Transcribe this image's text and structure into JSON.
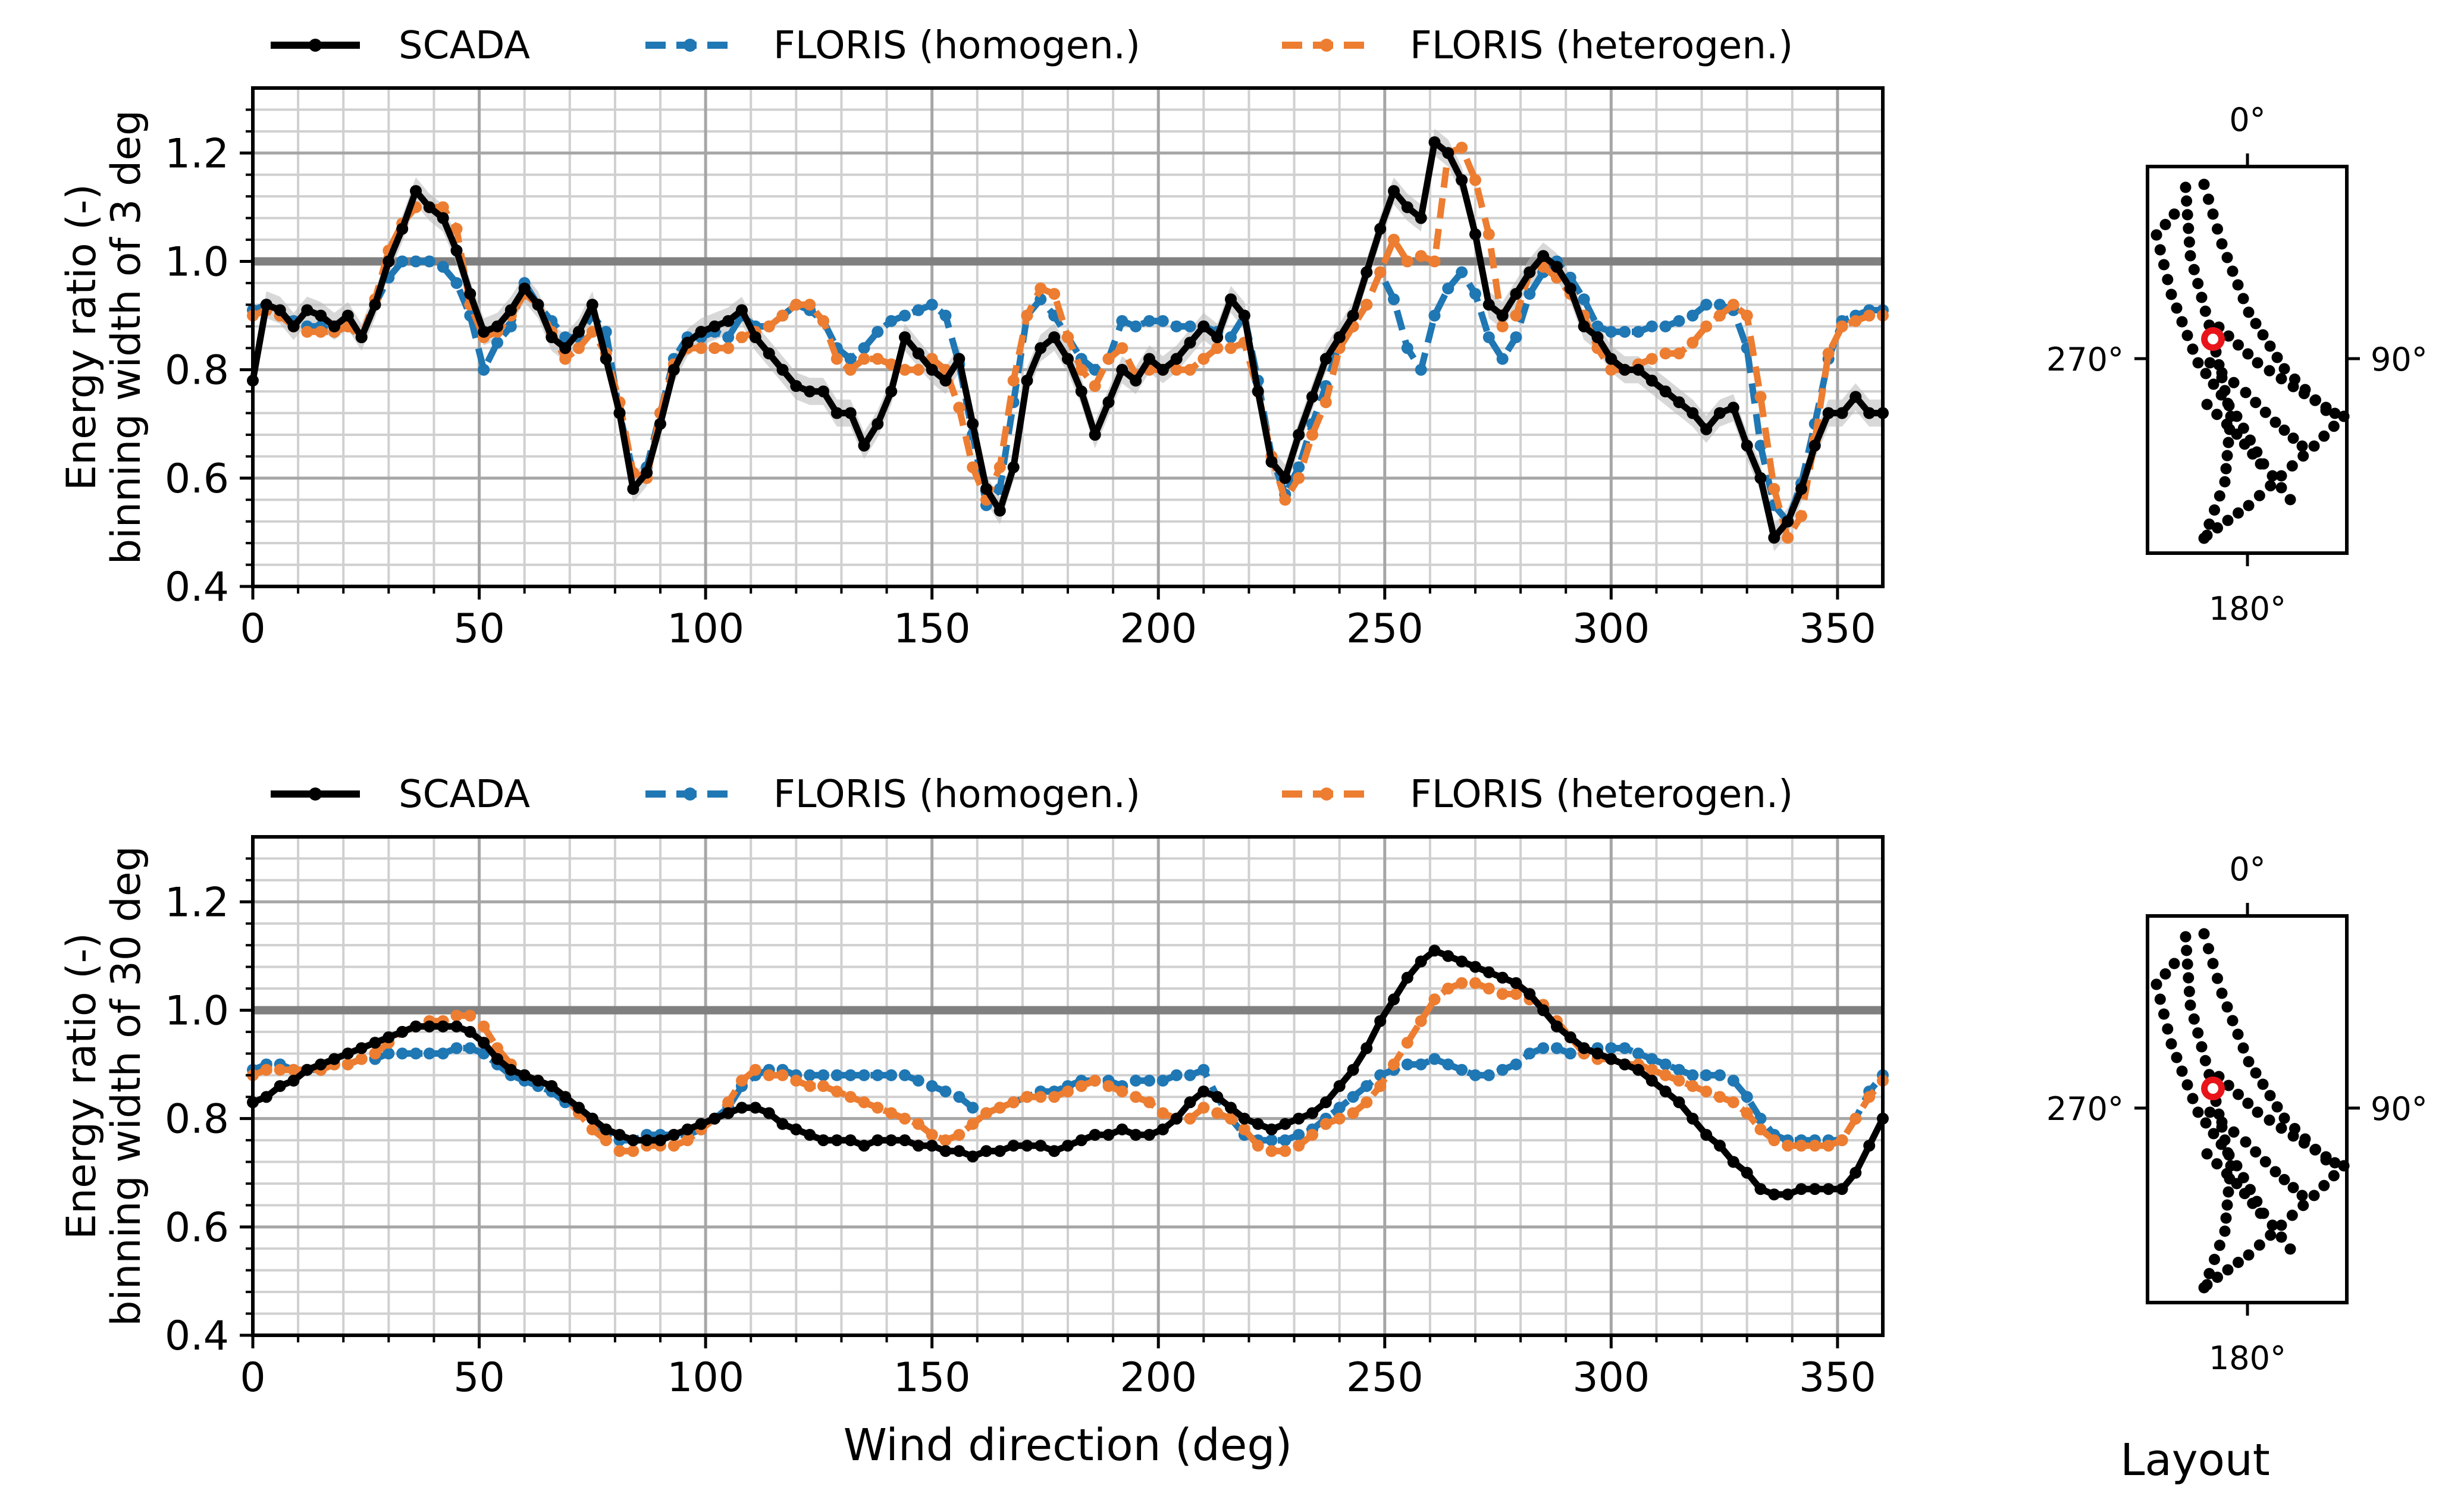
{
  "chart_data": [
    {
      "type": "line",
      "panel": "top",
      "ylabel": [
        "Energy ratio (-)",
        "binning width of 3 deg"
      ],
      "xlabel": "",
      "xlim": [
        0,
        360
      ],
      "ylim": [
        0.4,
        1.32
      ],
      "xticks": [
        "0",
        "50",
        "100",
        "150",
        "200",
        "250",
        "300",
        "350"
      ],
      "yticks": [
        "0.4",
        "0.6",
        "0.8",
        "1.0",
        "1.2"
      ],
      "reference_line": 1.0,
      "grid": true,
      "legend": {
        "placement": "above",
        "entries": [
          "SCADA",
          "FLORIS (homogen.)",
          "FLORIS (heterogen.)"
        ]
      },
      "x": [
        0,
        3,
        6,
        9,
        12,
        15,
        18,
        21,
        24,
        27,
        30,
        33,
        36,
        39,
        42,
        45,
        48,
        51,
        54,
        57,
        60,
        63,
        66,
        69,
        72,
        75,
        78,
        81,
        84,
        87,
        90,
        93,
        96,
        99,
        102,
        105,
        108,
        111,
        114,
        117,
        120,
        123,
        126,
        129,
        132,
        135,
        138,
        141,
        144,
        147,
        150,
        153,
        156,
        159,
        162,
        165,
        168,
        171,
        174,
        177,
        180,
        183,
        186,
        189,
        192,
        195,
        198,
        201,
        204,
        207,
        210,
        213,
        216,
        219,
        222,
        225,
        228,
        231,
        234,
        237,
        240,
        243,
        246,
        249,
        252,
        255,
        258,
        261,
        264,
        267,
        270,
        273,
        276,
        279,
        282,
        285,
        288,
        291,
        294,
        297,
        300,
        303,
        306,
        309,
        312,
        315,
        318,
        321,
        324,
        327,
        330,
        333,
        336,
        339,
        342,
        345,
        348,
        351,
        354,
        357,
        360
      ],
      "series": [
        {
          "name": "SCADA",
          "color": "#000000",
          "style": "solid",
          "values": [
            0.78,
            0.92,
            0.91,
            0.88,
            0.91,
            0.9,
            0.88,
            0.9,
            0.86,
            0.92,
            1.0,
            1.06,
            1.13,
            1.1,
            1.08,
            1.02,
            0.94,
            0.87,
            0.88,
            0.91,
            0.95,
            0.92,
            0.86,
            0.84,
            0.87,
            0.92,
            0.82,
            0.72,
            0.58,
            0.61,
            0.7,
            0.8,
            0.85,
            0.87,
            0.88,
            0.89,
            0.91,
            0.86,
            0.83,
            0.8,
            0.77,
            0.76,
            0.76,
            0.72,
            0.72,
            0.66,
            0.7,
            0.76,
            0.86,
            0.83,
            0.8,
            0.78,
            0.82,
            0.7,
            0.58,
            0.54,
            0.62,
            0.78,
            0.84,
            0.86,
            0.82,
            0.76,
            0.68,
            0.74,
            0.8,
            0.78,
            0.82,
            0.8,
            0.82,
            0.85,
            0.88,
            0.86,
            0.93,
            0.9,
            0.76,
            0.63,
            0.6,
            0.68,
            0.75,
            0.82,
            0.86,
            0.9,
            0.98,
            1.06,
            1.13,
            1.1,
            1.08,
            1.22,
            1.2,
            1.15,
            1.05,
            0.92,
            0.9,
            0.94,
            0.98,
            1.01,
            0.99,
            0.95,
            0.88,
            0.86,
            0.82,
            0.8,
            0.8,
            0.78,
            0.76,
            0.74,
            0.72,
            0.69,
            0.72,
            0.73,
            0.66,
            0.6,
            0.49,
            0.52,
            0.58,
            0.66,
            0.72,
            0.72,
            0.75,
            0.72,
            0.72
          ]
        },
        {
          "name": "FLORIS (homogen.)",
          "color": "#1f77b4",
          "style": "dashed",
          "values": [
            0.91,
            0.92,
            0.9,
            0.89,
            0.88,
            0.88,
            0.87,
            0.88,
            0.86,
            0.92,
            0.97,
            1.0,
            1.0,
            1.0,
            0.99,
            0.96,
            0.9,
            0.8,
            0.85,
            0.88,
            0.96,
            0.92,
            0.89,
            0.86,
            0.86,
            0.9,
            0.87,
            0.72,
            0.61,
            0.62,
            0.72,
            0.82,
            0.86,
            0.86,
            0.87,
            0.86,
            0.9,
            0.88,
            0.88,
            0.9,
            0.92,
            0.91,
            0.89,
            0.84,
            0.82,
            0.84,
            0.87,
            0.89,
            0.9,
            0.91,
            0.92,
            0.9,
            0.81,
            0.68,
            0.55,
            0.58,
            0.74,
            0.9,
            0.93,
            0.9,
            0.86,
            0.82,
            0.8,
            0.82,
            0.89,
            0.88,
            0.89,
            0.89,
            0.88,
            0.88,
            0.88,
            0.87,
            0.86,
            0.9,
            0.78,
            0.64,
            0.57,
            0.62,
            0.7,
            0.77,
            0.85,
            0.88,
            0.92,
            0.98,
            0.93,
            0.84,
            0.8,
            0.9,
            0.95,
            0.98,
            0.94,
            0.86,
            0.82,
            0.86,
            0.94,
            0.98,
            1.0,
            0.97,
            0.93,
            0.88,
            0.87,
            0.87,
            0.87,
            0.88,
            0.88,
            0.89,
            0.9,
            0.92,
            0.92,
            0.91,
            0.84,
            0.66,
            0.55,
            0.52,
            0.59,
            0.7,
            0.82,
            0.89,
            0.9,
            0.91,
            0.91
          ]
        },
        {
          "name": "FLORIS (heterogen.)",
          "color": "#ed7d31",
          "style": "dashed",
          "values": [
            0.9,
            0.91,
            0.9,
            0.88,
            0.87,
            0.87,
            0.87,
            0.88,
            0.86,
            0.93,
            1.02,
            1.07,
            1.1,
            1.1,
            1.1,
            1.06,
            0.92,
            0.86,
            0.87,
            0.9,
            0.94,
            0.92,
            0.87,
            0.82,
            0.84,
            0.87,
            0.83,
            0.74,
            0.61,
            0.6,
            0.72,
            0.81,
            0.84,
            0.84,
            0.84,
            0.84,
            0.86,
            0.87,
            0.88,
            0.9,
            0.92,
            0.92,
            0.89,
            0.82,
            0.8,
            0.82,
            0.82,
            0.81,
            0.8,
            0.8,
            0.82,
            0.8,
            0.73,
            0.62,
            0.56,
            0.62,
            0.78,
            0.9,
            0.95,
            0.94,
            0.86,
            0.8,
            0.77,
            0.82,
            0.84,
            0.79,
            0.8,
            0.8,
            0.8,
            0.8,
            0.82,
            0.84,
            0.84,
            0.85,
            0.76,
            0.64,
            0.56,
            0.6,
            0.68,
            0.74,
            0.84,
            0.88,
            0.92,
            0.98,
            1.04,
            1.0,
            1.01,
            1.0,
            1.2,
            1.21,
            1.15,
            1.05,
            0.88,
            0.9,
            0.98,
            0.99,
            0.97,
            0.94,
            0.9,
            0.84,
            0.8,
            0.8,
            0.81,
            0.82,
            0.83,
            0.83,
            0.85,
            0.88,
            0.9,
            0.92,
            0.9,
            0.75,
            0.58,
            0.49,
            0.53,
            0.67,
            0.83,
            0.88,
            0.89,
            0.9,
            0.9
          ]
        }
      ]
    },
    {
      "type": "line",
      "panel": "bottom",
      "ylabel": [
        "Energy ratio (-)",
        "binning width of 30 deg"
      ],
      "xlabel": "Wind direction (deg)",
      "xlim": [
        0,
        360
      ],
      "ylim": [
        0.4,
        1.32
      ],
      "xticks": [
        "0",
        "50",
        "100",
        "150",
        "200",
        "250",
        "300",
        "350"
      ],
      "yticks": [
        "0.4",
        "0.6",
        "0.8",
        "1.0",
        "1.2"
      ],
      "reference_line": 1.0,
      "grid": true,
      "legend": {
        "placement": "above",
        "entries": [
          "SCADA",
          "FLORIS (homogen.)",
          "FLORIS (heterogen.)"
        ]
      },
      "x": [
        0,
        3,
        6,
        9,
        12,
        15,
        18,
        21,
        24,
        27,
        30,
        33,
        36,
        39,
        42,
        45,
        48,
        51,
        54,
        57,
        60,
        63,
        66,
        69,
        72,
        75,
        78,
        81,
        84,
        87,
        90,
        93,
        96,
        99,
        102,
        105,
        108,
        111,
        114,
        117,
        120,
        123,
        126,
        129,
        132,
        135,
        138,
        141,
        144,
        147,
        150,
        153,
        156,
        159,
        162,
        165,
        168,
        171,
        174,
        177,
        180,
        183,
        186,
        189,
        192,
        195,
        198,
        201,
        204,
        207,
        210,
        213,
        216,
        219,
        222,
        225,
        228,
        231,
        234,
        237,
        240,
        243,
        246,
        249,
        252,
        255,
        258,
        261,
        264,
        267,
        270,
        273,
        276,
        279,
        282,
        285,
        288,
        291,
        294,
        297,
        300,
        303,
        306,
        309,
        312,
        315,
        318,
        321,
        324,
        327,
        330,
        333,
        336,
        339,
        342,
        345,
        348,
        351,
        354,
        357,
        360
      ],
      "series": [
        {
          "name": "SCADA",
          "color": "#000000",
          "style": "solid",
          "values": [
            0.83,
            0.84,
            0.86,
            0.87,
            0.89,
            0.9,
            0.91,
            0.92,
            0.93,
            0.94,
            0.95,
            0.96,
            0.97,
            0.97,
            0.97,
            0.97,
            0.96,
            0.94,
            0.91,
            0.89,
            0.88,
            0.87,
            0.86,
            0.84,
            0.82,
            0.8,
            0.78,
            0.77,
            0.76,
            0.76,
            0.76,
            0.77,
            0.78,
            0.79,
            0.8,
            0.81,
            0.82,
            0.82,
            0.81,
            0.79,
            0.78,
            0.77,
            0.76,
            0.76,
            0.76,
            0.75,
            0.76,
            0.76,
            0.76,
            0.75,
            0.75,
            0.74,
            0.74,
            0.73,
            0.74,
            0.74,
            0.75,
            0.75,
            0.75,
            0.74,
            0.75,
            0.76,
            0.77,
            0.77,
            0.78,
            0.77,
            0.77,
            0.78,
            0.8,
            0.83,
            0.85,
            0.84,
            0.82,
            0.8,
            0.79,
            0.78,
            0.79,
            0.8,
            0.81,
            0.83,
            0.86,
            0.89,
            0.93,
            0.98,
            1.02,
            1.06,
            1.09,
            1.11,
            1.1,
            1.09,
            1.08,
            1.07,
            1.06,
            1.05,
            1.03,
            1.0,
            0.97,
            0.95,
            0.93,
            0.92,
            0.91,
            0.9,
            0.89,
            0.87,
            0.85,
            0.83,
            0.8,
            0.77,
            0.75,
            0.72,
            0.7,
            0.67,
            0.66,
            0.66,
            0.67,
            0.67,
            0.67,
            0.67,
            0.7,
            0.75,
            0.8
          ]
        },
        {
          "name": "FLORIS (homogen.)",
          "color": "#1f77b4",
          "style": "dashed",
          "values": [
            0.89,
            0.9,
            0.9,
            0.89,
            0.89,
            0.89,
            0.9,
            0.9,
            0.91,
            0.91,
            0.92,
            0.92,
            0.92,
            0.92,
            0.92,
            0.93,
            0.93,
            0.92,
            0.9,
            0.88,
            0.87,
            0.86,
            0.85,
            0.83,
            0.82,
            0.8,
            0.77,
            0.76,
            0.76,
            0.77,
            0.77,
            0.77,
            0.77,
            0.78,
            0.8,
            0.82,
            0.86,
            0.88,
            0.89,
            0.89,
            0.88,
            0.88,
            0.88,
            0.88,
            0.88,
            0.88,
            0.88,
            0.88,
            0.88,
            0.87,
            0.86,
            0.85,
            0.84,
            0.82,
            0.81,
            0.82,
            0.83,
            0.84,
            0.85,
            0.85,
            0.86,
            0.87,
            0.87,
            0.87,
            0.86,
            0.87,
            0.87,
            0.87,
            0.88,
            0.88,
            0.89,
            0.84,
            0.8,
            0.77,
            0.76,
            0.76,
            0.76,
            0.77,
            0.78,
            0.8,
            0.82,
            0.84,
            0.86,
            0.88,
            0.89,
            0.9,
            0.9,
            0.91,
            0.9,
            0.89,
            0.88,
            0.88,
            0.89,
            0.9,
            0.92,
            0.93,
            0.93,
            0.92,
            0.92,
            0.93,
            0.93,
            0.93,
            0.92,
            0.91,
            0.9,
            0.89,
            0.88,
            0.88,
            0.88,
            0.87,
            0.84,
            0.8,
            0.77,
            0.76,
            0.76,
            0.76,
            0.76,
            0.76,
            0.8,
            0.85,
            0.88
          ]
        },
        {
          "name": "FLORIS (heterogen.)",
          "color": "#ed7d31",
          "style": "dashed",
          "values": [
            0.88,
            0.89,
            0.89,
            0.89,
            0.89,
            0.89,
            0.9,
            0.9,
            0.91,
            0.92,
            0.94,
            0.96,
            0.97,
            0.98,
            0.98,
            0.99,
            0.99,
            0.97,
            0.93,
            0.9,
            0.88,
            0.87,
            0.86,
            0.84,
            0.81,
            0.78,
            0.76,
            0.74,
            0.74,
            0.75,
            0.75,
            0.75,
            0.76,
            0.78,
            0.8,
            0.83,
            0.87,
            0.89,
            0.88,
            0.88,
            0.87,
            0.86,
            0.86,
            0.85,
            0.84,
            0.83,
            0.82,
            0.81,
            0.8,
            0.79,
            0.77,
            0.76,
            0.77,
            0.79,
            0.81,
            0.82,
            0.83,
            0.84,
            0.84,
            0.84,
            0.85,
            0.86,
            0.87,
            0.86,
            0.85,
            0.84,
            0.83,
            0.81,
            0.8,
            0.8,
            0.82,
            0.81,
            0.8,
            0.78,
            0.75,
            0.74,
            0.74,
            0.75,
            0.77,
            0.79,
            0.8,
            0.81,
            0.83,
            0.86,
            0.9,
            0.94,
            0.98,
            1.02,
            1.04,
            1.05,
            1.05,
            1.04,
            1.03,
            1.03,
            1.02,
            1.01,
            0.98,
            0.95,
            0.92,
            0.91,
            0.91,
            0.9,
            0.9,
            0.89,
            0.88,
            0.87,
            0.86,
            0.85,
            0.84,
            0.83,
            0.81,
            0.78,
            0.76,
            0.75,
            0.75,
            0.75,
            0.75,
            0.76,
            0.8,
            0.84,
            0.87
          ]
        }
      ]
    }
  ],
  "layout_inset": {
    "caption": "Layout",
    "directions": {
      "north": "0°",
      "east": "90°",
      "south": "180°",
      "west": "270°"
    },
    "turbine_color": "#000000",
    "highlight_color": "#e8141a"
  }
}
